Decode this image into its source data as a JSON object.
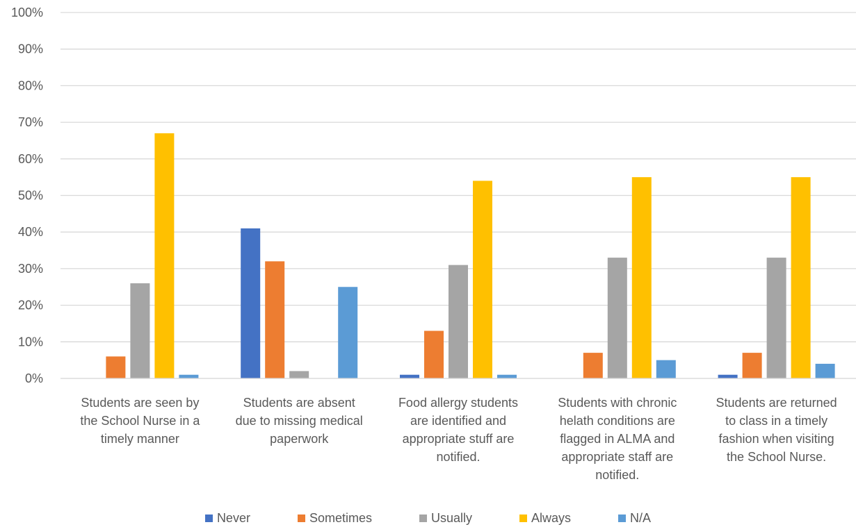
{
  "chart_data": {
    "type": "bar",
    "categories": [
      "Students are seen by the School Nurse in a timely manner",
      "Students are absent due to missing medical paperwork",
      "Food allergy students are identified and appropriate stuff are notified.",
      "Students with chronic helath conditions are flagged in ALMA and appropriate staff are notified.",
      "Students are returned to class in a timely fashion when visiting the School Nurse."
    ],
    "category_lines": [
      [
        "Students are seen by",
        "the School Nurse in a",
        "timely manner"
      ],
      [
        "Students are absent",
        "due to missing medical",
        "paperwork"
      ],
      [
        "Food allergy students",
        "are identified and",
        "appropriate stuff are",
        "notified."
      ],
      [
        "Students with chronic",
        "helath conditions are",
        "flagged in ALMA and",
        "appropriate staff are",
        "notified."
      ],
      [
        "Students are returned",
        "to class in a timely",
        "fashion when visiting",
        "the School Nurse."
      ]
    ],
    "series": [
      {
        "name": "Never",
        "color": "#4472C4",
        "values": [
          0,
          41,
          1,
          0,
          1
        ]
      },
      {
        "name": "Sometimes",
        "color": "#ED7D31",
        "values": [
          6,
          32,
          13,
          7,
          7
        ]
      },
      {
        "name": "Usually",
        "color": "#A5A5A5",
        "values": [
          26,
          2,
          31,
          33,
          33
        ]
      },
      {
        "name": "Always",
        "color": "#FFC000",
        "values": [
          67,
          0,
          54,
          55,
          55
        ]
      },
      {
        "name": "N/A",
        "color": "#5B9BD5",
        "values": [
          1,
          25,
          1,
          5,
          4
        ]
      }
    ],
    "ylim": [
      0,
      100
    ],
    "yticks": [
      "0%",
      "10%",
      "20%",
      "30%",
      "40%",
      "50%",
      "60%",
      "70%",
      "80%",
      "90%",
      "100%"
    ],
    "grid": true,
    "legend_position": "bottom",
    "title": "",
    "xlabel": "",
    "ylabel": ""
  }
}
